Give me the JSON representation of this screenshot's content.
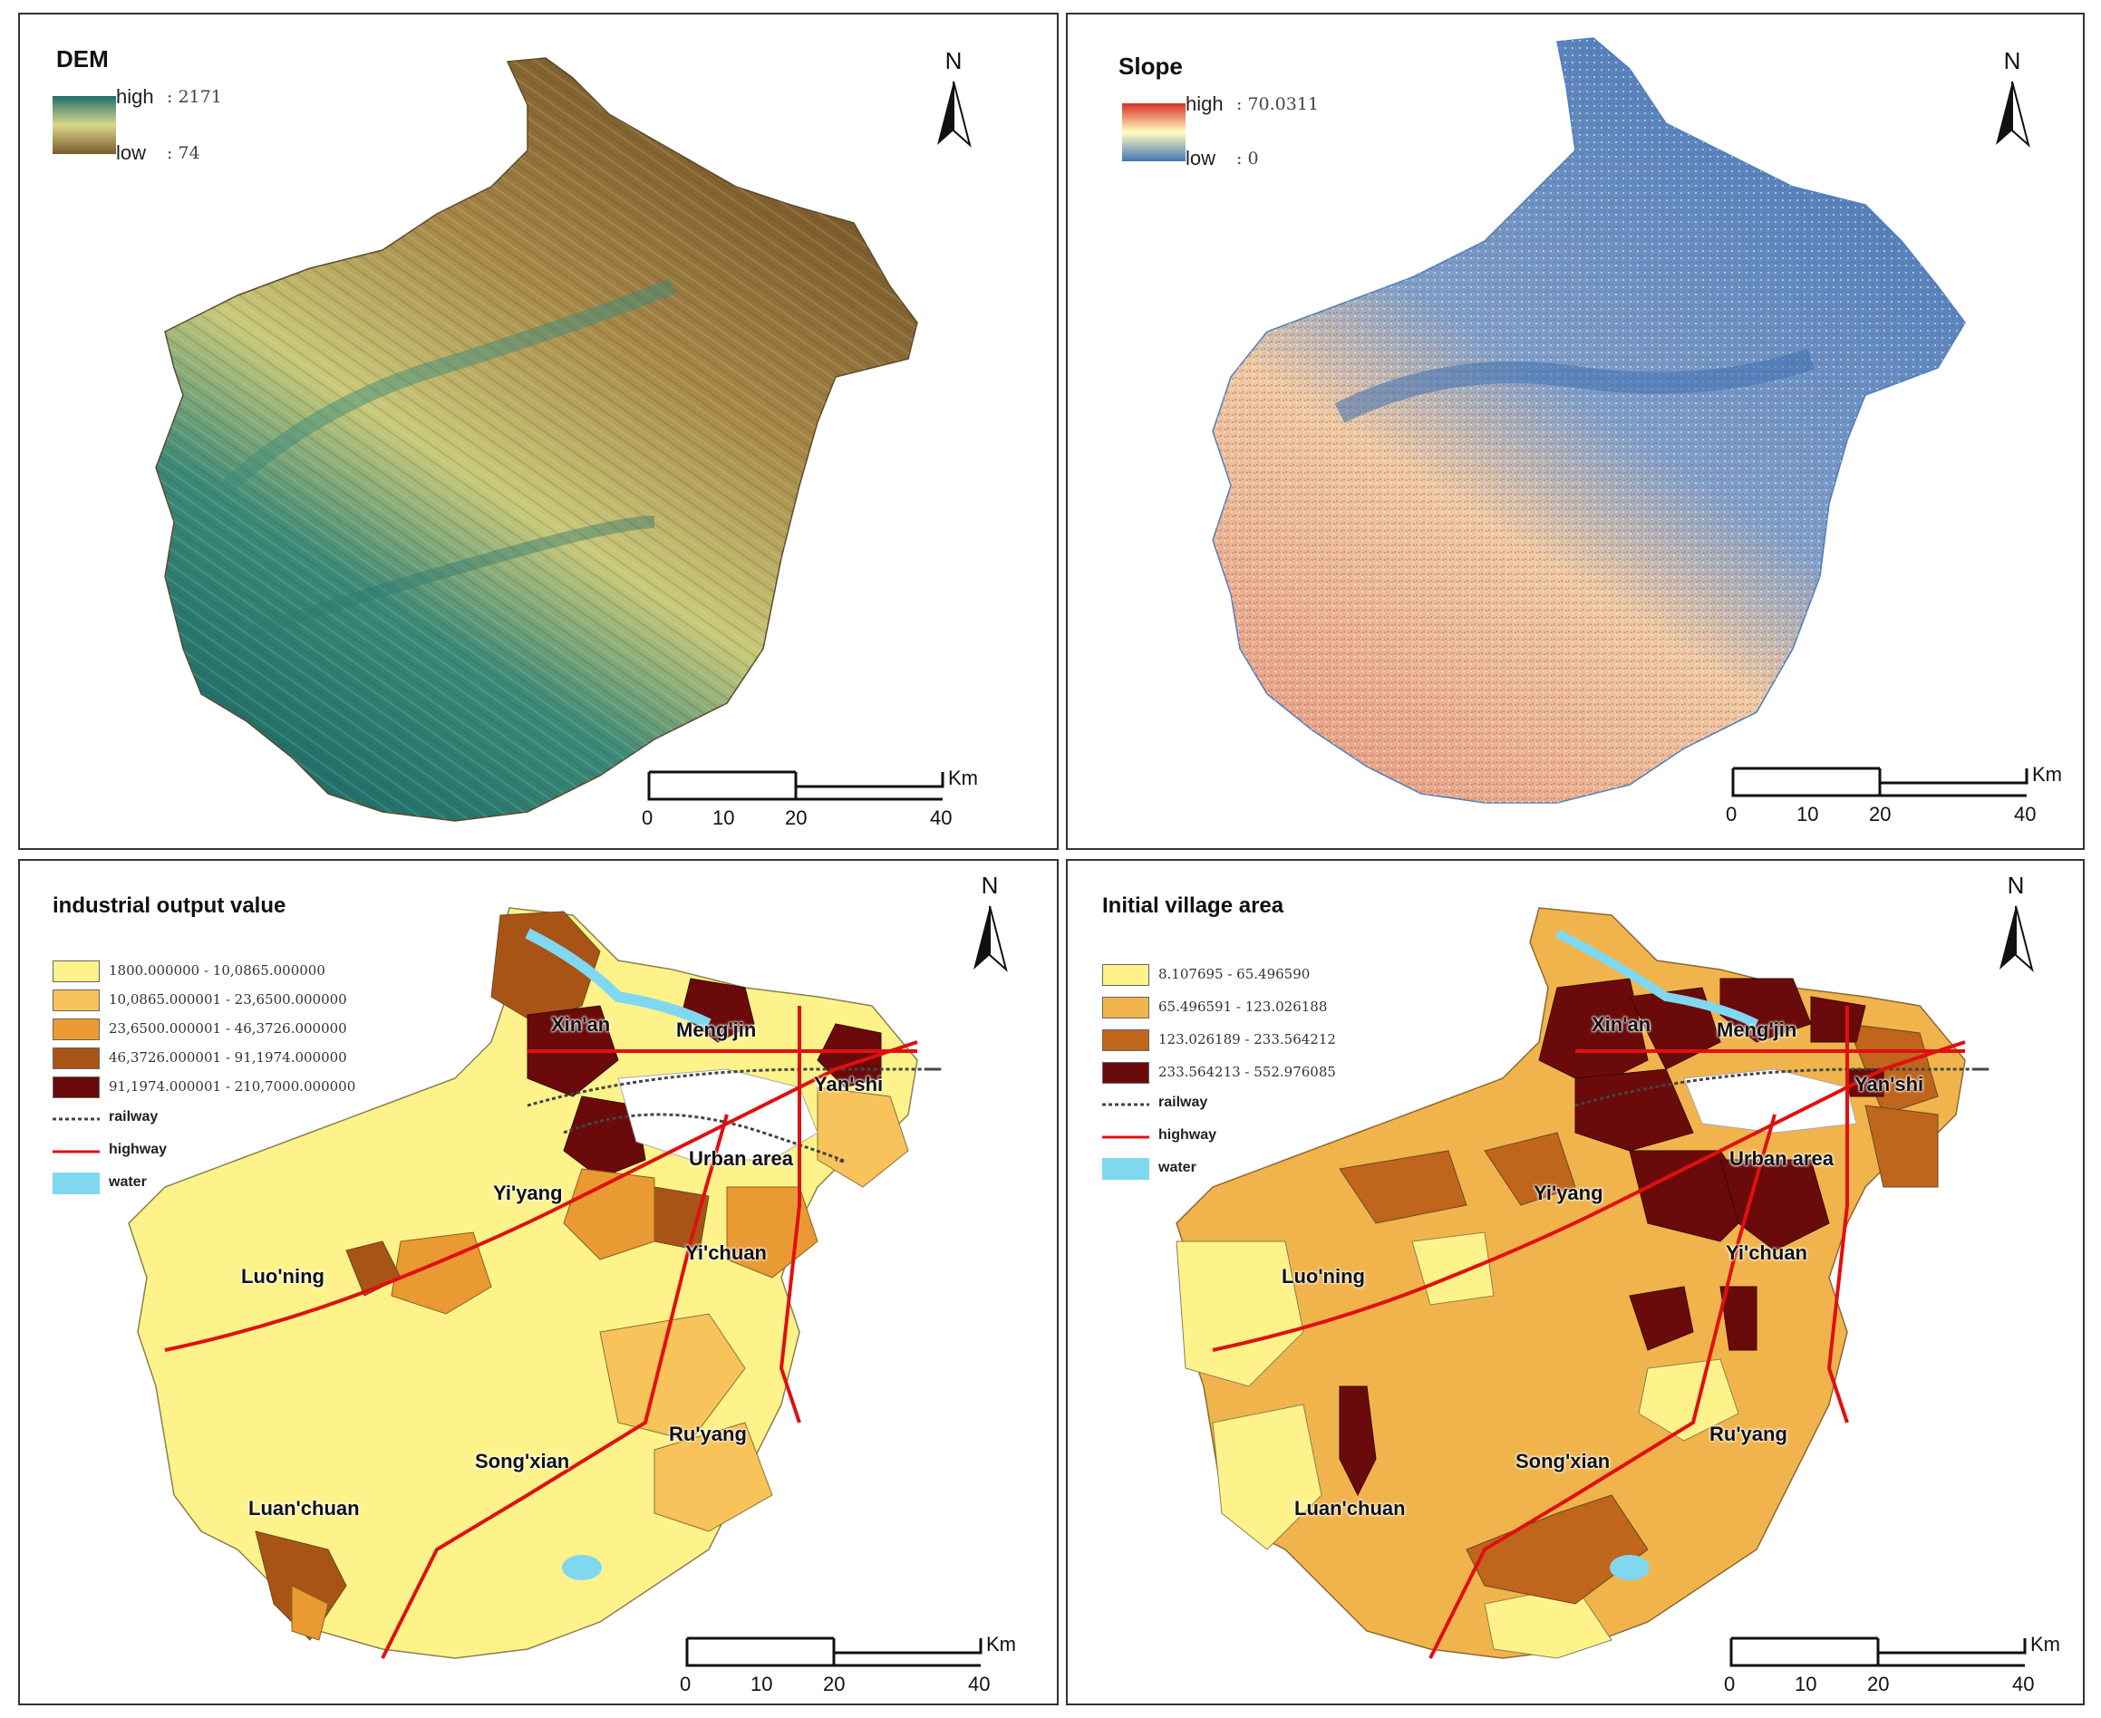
{
  "panels": {
    "dem": {
      "title": "DEM",
      "legend": {
        "high_label": "high",
        "high_value": ": 2171",
        "low_label": "low",
        "low_value": ": 74"
      },
      "colors": {
        "low": "#1f6f6c",
        "mid": "#d9d88a",
        "high": "#7a5a2a"
      }
    },
    "slope": {
      "title": "Slope",
      "legend": {
        "high_label": "high",
        "high_value": ": 70.0311",
        "low_label": "low",
        "low_value": ": 0"
      },
      "colors": {
        "high": "#d73027",
        "mid": "#ffffbf",
        "low": "#4575b4"
      }
    },
    "industrial": {
      "title": "industrial output value",
      "classes": [
        {
          "label": "1800.000000 - 10,0865.000000",
          "color": "#fdf38a"
        },
        {
          "label": "10,0865.000001 - 23,6500.000000",
          "color": "#f7c35a"
        },
        {
          "label": "23,6500.000001 - 46,3726.000000",
          "color": "#e99a32"
        },
        {
          "label": "46,3726.000001 - 91,1974.000000",
          "color": "#a85417"
        },
        {
          "label": "91,1974.000001 - 210,7000.000000",
          "color": "#6b0a0a"
        }
      ]
    },
    "village": {
      "title": "Initial village area",
      "classes": [
        {
          "label": "8.107695 - 65.496590",
          "color": "#fdf38a"
        },
        {
          "label": "65.496591 - 123.026188",
          "color": "#f1b44c"
        },
        {
          "label": "123.026189 - 233.564212",
          "color": "#c0651c"
        },
        {
          "label": "233.564213 - 552.976085",
          "color": "#6b0a0a"
        }
      ]
    }
  },
  "symbols": {
    "railway": "railway",
    "highway": "highway",
    "water": "water"
  },
  "symbol_colors": {
    "railway": "#444444",
    "highway": "#e01010",
    "water": "#7fd8f0"
  },
  "north_label": "N",
  "scale": {
    "ticks": [
      "0",
      "10",
      "20",
      "40"
    ],
    "unit": "Km"
  },
  "places": {
    "xinan": "Xin'an",
    "mengjin": "Meng'jin",
    "yanshi": "Yan'shi",
    "urban": "Urban area",
    "yiyang": "Yi'yang",
    "yichuan": "Yi'chuan",
    "luoning": "Luo'ning",
    "ruyang": "Ru'yang",
    "songxian": "Song'xian",
    "luanchuan": "Luan'chuan"
  }
}
